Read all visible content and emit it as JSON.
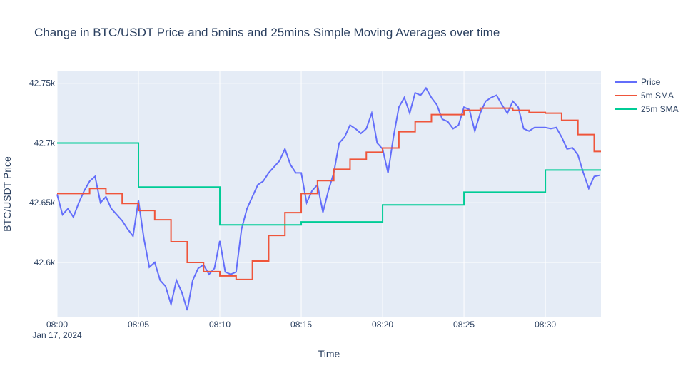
{
  "chart_data": {
    "type": "line",
    "title": "Change in BTC/USDT Price and 5mins and 25mins Simple Moving Averages over time",
    "x_label": "Time",
    "y_label": "BTC/USDT Price",
    "x_date_label": "Jan 17, 2024",
    "xlim": [
      "08:00:00",
      "08:33:25"
    ],
    "xticks": [
      "08:00",
      "08:05",
      "08:10",
      "08:15",
      "08:20",
      "08:25",
      "08:30"
    ],
    "ylim": [
      42554,
      42760
    ],
    "yticks": [
      {
        "value": 42600,
        "label": "42.6k"
      },
      {
        "value": 42650,
        "label": "42.65k"
      },
      {
        "value": 42700,
        "label": "42.7k"
      },
      {
        "value": 42750,
        "label": "42.75k"
      }
    ],
    "grid": true,
    "legend": "right",
    "series": [
      {
        "name": "Price",
        "color": "#636efa",
        "shape": "linear",
        "x": [
          "08:00:00",
          "08:00:20",
          "08:00:40",
          "08:01:00",
          "08:01:20",
          "08:01:40",
          "08:02:00",
          "08:02:20",
          "08:02:40",
          "08:03:00",
          "08:03:20",
          "08:03:40",
          "08:04:00",
          "08:04:20",
          "08:04:40",
          "08:05:00",
          "08:05:20",
          "08:05:40",
          "08:06:00",
          "08:06:20",
          "08:06:40",
          "08:07:00",
          "08:07:20",
          "08:07:40",
          "08:08:00",
          "08:08:20",
          "08:08:40",
          "08:09:00",
          "08:09:20",
          "08:09:40",
          "08:10:00",
          "08:10:20",
          "08:10:40",
          "08:11:00",
          "08:11:20",
          "08:11:40",
          "08:12:00",
          "08:12:20",
          "08:12:40",
          "08:13:00",
          "08:13:20",
          "08:13:40",
          "08:14:00",
          "08:14:20",
          "08:14:40",
          "08:15:00",
          "08:15:20",
          "08:15:40",
          "08:16:00",
          "08:16:20",
          "08:16:40",
          "08:17:00",
          "08:17:20",
          "08:17:40",
          "08:18:00",
          "08:18:20",
          "08:18:40",
          "08:19:00",
          "08:19:20",
          "08:19:40",
          "08:20:00",
          "08:20:20",
          "08:20:40",
          "08:21:00",
          "08:21:20",
          "08:21:40",
          "08:22:00",
          "08:22:20",
          "08:22:40",
          "08:23:00",
          "08:23:20",
          "08:23:40",
          "08:24:00",
          "08:24:20",
          "08:24:40",
          "08:25:00",
          "08:25:20",
          "08:25:40",
          "08:26:00",
          "08:26:20",
          "08:26:40",
          "08:27:00",
          "08:27:20",
          "08:27:40",
          "08:28:00",
          "08:28:20",
          "08:28:40",
          "08:29:00",
          "08:29:20",
          "08:29:40",
          "08:30:00",
          "08:30:20",
          "08:30:40",
          "08:31:00",
          "08:31:20",
          "08:31:40",
          "08:32:00",
          "08:32:20",
          "08:32:40",
          "08:33:00",
          "08:33:20"
        ],
        "values": [
          42657,
          42640,
          42645,
          42638,
          42650,
          42660,
          42668,
          42672,
          42650,
          42655,
          42645,
          42640,
          42635,
          42628,
          42622,
          42652,
          42620,
          42596,
          42600,
          42585,
          42580,
          42565,
          42585,
          42575,
          42560,
          42585,
          42595,
          42598,
          42590,
          42595,
          42618,
          42592,
          42590,
          42592,
          42628,
          42645,
          42655,
          42665,
          42668,
          42675,
          42680,
          42685,
          42695,
          42682,
          42675,
          42675,
          42650,
          42660,
          42665,
          42642,
          42660,
          42675,
          42700,
          42705,
          42715,
          42712,
          42708,
          42712,
          42725,
          42700,
          42695,
          42675,
          42705,
          42730,
          42738,
          42725,
          42742,
          42740,
          42746,
          42738,
          42732,
          42720,
          42718,
          42712,
          42715,
          42730,
          42728,
          42710,
          42725,
          42735,
          42738,
          42740,
          42732,
          42725,
          42735,
          42730,
          42712,
          42710,
          42713,
          42713,
          42713,
          42712,
          42713,
          42705,
          42695,
          42696,
          42690,
          42675,
          42662,
          42672,
          42673
        ]
      },
      {
        "name": "5m SMA",
        "color": "#ef553b",
        "shape": "hv",
        "x": [
          "08:00:00",
          "08:02:00",
          "08:03:00",
          "08:04:00",
          "08:05:00",
          "08:06:00",
          "08:07:00",
          "08:08:00",
          "08:09:00",
          "08:10:00",
          "08:11:00",
          "08:12:00",
          "08:13:00",
          "08:14:00",
          "08:15:00",
          "08:16:00",
          "08:17:00",
          "08:18:00",
          "08:19:00",
          "08:20:00",
          "08:21:00",
          "08:22:00",
          "08:23:00",
          "08:25:00",
          "08:26:00",
          "08:28:00",
          "08:29:00",
          "08:30:00",
          "08:31:00",
          "08:32:00",
          "08:33:00"
        ],
        "values": [
          42657.7,
          42661.9,
          42657.7,
          42649.4,
          42643.5,
          42635.7,
          42617.3,
          42600,
          42592.3,
          42588.7,
          42585.7,
          42601.2,
          42622.6,
          42641.7,
          42657.7,
          42668.5,
          42678,
          42686.3,
          42692.3,
          42695.8,
          42709.5,
          42717.9,
          42723.8,
          42727.4,
          42729.2,
          42727.4,
          42725.6,
          42725,
          42719,
          42707.1,
          42692.9
        ]
      },
      {
        "name": "25m SMA",
        "color": "#00cc96",
        "shape": "hv",
        "x": [
          "08:00:00",
          "08:05:00",
          "08:10:00",
          "08:15:00",
          "08:20:00",
          "08:25:00",
          "08:30:00"
        ],
        "values": [
          42700,
          42663.1,
          42631.5,
          42633.9,
          42648.2,
          42658.9,
          42677.4
        ]
      }
    ]
  }
}
